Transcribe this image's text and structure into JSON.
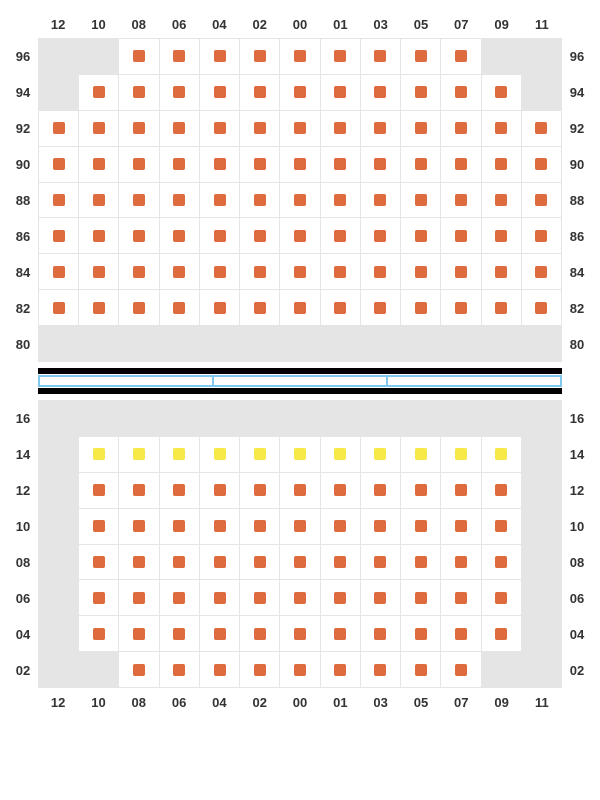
{
  "columns": [
    "12",
    "10",
    "08",
    "06",
    "04",
    "02",
    "00",
    "01",
    "03",
    "05",
    "07",
    "09",
    "11"
  ],
  "upper": {
    "rows": [
      "96",
      "94",
      "92",
      "90",
      "88",
      "86",
      "84",
      "82",
      "80"
    ],
    "cells": [
      [
        "e",
        "e",
        "o",
        "o",
        "o",
        "o",
        "o",
        "o",
        "o",
        "o",
        "o",
        "e",
        "e"
      ],
      [
        "e",
        "o",
        "o",
        "o",
        "o",
        "o",
        "o",
        "o",
        "o",
        "o",
        "o",
        "o",
        "e"
      ],
      [
        "o",
        "o",
        "o",
        "o",
        "o",
        "o",
        "o",
        "o",
        "o",
        "o",
        "o",
        "o",
        "o"
      ],
      [
        "o",
        "o",
        "o",
        "o",
        "o",
        "o",
        "o",
        "o",
        "o",
        "o",
        "o",
        "o",
        "o"
      ],
      [
        "o",
        "o",
        "o",
        "o",
        "o",
        "o",
        "o",
        "o",
        "o",
        "o",
        "o",
        "o",
        "o"
      ],
      [
        "o",
        "o",
        "o",
        "o",
        "o",
        "o",
        "o",
        "o",
        "o",
        "o",
        "o",
        "o",
        "o"
      ],
      [
        "o",
        "o",
        "o",
        "o",
        "o",
        "o",
        "o",
        "o",
        "o",
        "o",
        "o",
        "o",
        "o"
      ],
      [
        "o",
        "o",
        "o",
        "o",
        "o",
        "o",
        "o",
        "o",
        "o",
        "o",
        "o",
        "o",
        "o"
      ],
      [
        "e",
        "e",
        "e",
        "e",
        "e",
        "e",
        "e",
        "e",
        "e",
        "e",
        "e",
        "e",
        "e"
      ]
    ]
  },
  "lower": {
    "rows": [
      "16",
      "14",
      "12",
      "10",
      "08",
      "06",
      "04",
      "02"
    ],
    "cells": [
      [
        "e",
        "e",
        "e",
        "e",
        "e",
        "e",
        "e",
        "e",
        "e",
        "e",
        "e",
        "e",
        "e"
      ],
      [
        "e",
        "y",
        "y",
        "y",
        "y",
        "y",
        "y",
        "y",
        "y",
        "y",
        "y",
        "y",
        "e"
      ],
      [
        "e",
        "o",
        "o",
        "o",
        "o",
        "o",
        "o",
        "o",
        "o",
        "o",
        "o",
        "o",
        "e"
      ],
      [
        "e",
        "o",
        "o",
        "o",
        "o",
        "o",
        "o",
        "o",
        "o",
        "o",
        "o",
        "o",
        "e"
      ],
      [
        "e",
        "o",
        "o",
        "o",
        "o",
        "o",
        "o",
        "o",
        "o",
        "o",
        "o",
        "o",
        "e"
      ],
      [
        "e",
        "o",
        "o",
        "o",
        "o",
        "o",
        "o",
        "o",
        "o",
        "o",
        "o",
        "o",
        "e"
      ],
      [
        "e",
        "o",
        "o",
        "o",
        "o",
        "o",
        "o",
        "o",
        "o",
        "o",
        "o",
        "o",
        "e"
      ],
      [
        "e",
        "e",
        "o",
        "o",
        "o",
        "o",
        "o",
        "o",
        "o",
        "o",
        "o",
        "e",
        "e"
      ]
    ]
  },
  "colors": {
    "o": "#dd6b3d",
    "y": "#f7e948",
    "screen_border": "#7ec8f0",
    "empty_bg": "#e5e5e5"
  }
}
